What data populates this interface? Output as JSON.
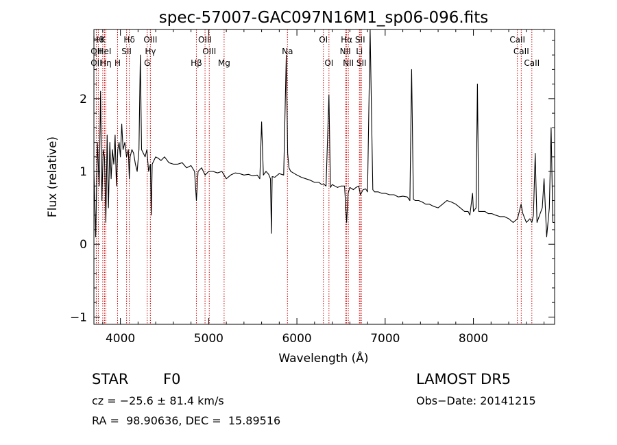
{
  "chart_data": {
    "type": "line",
    "title": "spec-57007-GAC097N16M1_sp06-096.fits",
    "xlabel": "Wavelength (Å)",
    "ylabel": "Flux (relative)",
    "xlim": [
      3700,
      8920
    ],
    "ylim": [
      -1.1,
      2.95
    ],
    "x_ticks": [
      4000,
      5000,
      6000,
      7000,
      8000
    ],
    "y_ticks": [
      -1,
      0,
      1,
      2
    ],
    "grid": false,
    "series": [
      {
        "color": "#000000",
        "x": [
          3700,
          3720,
          3740,
          3760,
          3775,
          3790,
          3805,
          3820,
          3835,
          3850,
          3865,
          3880,
          3895,
          3910,
          3925,
          3940,
          3955,
          3970,
          3985,
          4000,
          4015,
          4030,
          4050,
          4070,
          4090,
          4101,
          4110,
          4130,
          4150,
          4170,
          4190,
          4210,
          4226,
          4240,
          4260,
          4280,
          4300,
          4320,
          4340,
          4350,
          4360,
          4380,
          4400,
          4430,
          4460,
          4500,
          4550,
          4600,
          4650,
          4700,
          4750,
          4800,
          4840,
          4861,
          4880,
          4920,
          4960,
          5000,
          5050,
          5100,
          5150,
          5200,
          5250,
          5300,
          5350,
          5400,
          5450,
          5500,
          5550,
          5580,
          5600,
          5620,
          5650,
          5680,
          5700,
          5711,
          5720,
          5750,
          5800,
          5850,
          5880,
          5895,
          5910,
          5930,
          5960,
          6000,
          6050,
          6100,
          6150,
          6200,
          6250,
          6280,
          6300,
          6330,
          6363,
          6380,
          6400,
          6430,
          6460,
          6500,
          6540,
          6563,
          6580,
          6600,
          6640,
          6670,
          6700,
          6720,
          6750,
          6780,
          6800,
          6830,
          6860,
          6880,
          6920,
          6960,
          7000,
          7050,
          7100,
          7150,
          7200,
          7250,
          7280,
          7300,
          7320,
          7340,
          7380,
          7420,
          7460,
          7500,
          7550,
          7600,
          7650,
          7700,
          7750,
          7800,
          7850,
          7900,
          7940,
          7960,
          7990,
          8000,
          8030,
          8045,
          8060,
          8090,
          8130,
          8170,
          8210,
          8250,
          8300,
          8350,
          8400,
          8450,
          8500,
          8540,
          8560,
          8600,
          8640,
          8662,
          8680,
          8700,
          8720,
          8750,
          8780,
          8800,
          8830,
          8860,
          8880,
          8900,
          8920
        ],
        "y": [
          1.0,
          0.1,
          1.4,
          0.8,
          2.1,
          0.6,
          1.3,
          1.2,
          0.3,
          1.5,
          0.5,
          1.4,
          0.9,
          1.3,
          1.1,
          1.5,
          0.8,
          1.3,
          1.4,
          1.2,
          1.65,
          1.3,
          1.4,
          1.2,
          1.3,
          0.9,
          1.2,
          1.3,
          1.25,
          1.1,
          1.0,
          1.3,
          2.6,
          1.3,
          1.25,
          1.2,
          1.3,
          1.0,
          1.1,
          0.4,
          1.1,
          1.15,
          1.2,
          1.18,
          1.15,
          1.2,
          1.12,
          1.1,
          1.1,
          1.12,
          1.05,
          1.08,
          1.0,
          0.6,
          1.0,
          1.05,
          0.95,
          1.0,
          1.0,
          0.98,
          1.0,
          0.9,
          0.95,
          0.98,
          0.97,
          0.95,
          0.96,
          0.94,
          0.95,
          0.9,
          1.68,
          0.95,
          1.0,
          0.96,
          0.9,
          0.15,
          0.93,
          0.92,
          0.97,
          0.95,
          2.6,
          1.25,
          1.05,
          1.0,
          0.98,
          0.95,
          0.92,
          0.9,
          0.88,
          0.85,
          0.85,
          0.82,
          0.83,
          0.8,
          2.05,
          0.78,
          0.82,
          0.8,
          0.78,
          0.8,
          0.8,
          0.3,
          0.7,
          0.78,
          0.75,
          0.78,
          0.8,
          0.68,
          0.75,
          0.76,
          0.72,
          2.95,
          0.75,
          0.72,
          0.72,
          0.7,
          0.7,
          0.68,
          0.68,
          0.65,
          0.66,
          0.65,
          0.6,
          2.4,
          0.62,
          0.6,
          0.6,
          0.58,
          0.55,
          0.55,
          0.52,
          0.5,
          0.55,
          0.6,
          0.58,
          0.55,
          0.5,
          0.45,
          0.45,
          0.4,
          0.7,
          0.45,
          0.5,
          2.2,
          0.45,
          0.45,
          0.45,
          0.42,
          0.42,
          0.4,
          0.38,
          0.38,
          0.35,
          0.3,
          0.35,
          0.55,
          0.42,
          0.3,
          0.35,
          0.3,
          0.4,
          1.25,
          0.3,
          0.4,
          0.5,
          0.9,
          0.1,
          0.5,
          1.6,
          0.3,
          0.3
        ]
      }
    ],
    "lines": [
      {
        "x": 3750,
        "label": "Hθ",
        "row": 1
      },
      {
        "x": 3727,
        "label": "OII",
        "row": 2
      },
      {
        "x": 3727,
        "label": "OII",
        "row": 3
      },
      {
        "x": 3800,
        "label": "K",
        "row": 1
      },
      {
        "x": 3820,
        "label": "HeI",
        "row": 2
      },
      {
        "x": 3835,
        "label": "Hη",
        "row": 3
      },
      {
        "x": 3968,
        "label": "H",
        "row": 3
      },
      {
        "x": 4101,
        "label": "Hδ",
        "row": 1
      },
      {
        "x": 4070,
        "label": "SII",
        "row": 2
      },
      {
        "x": 4340,
        "label": "OIII",
        "row": 1
      },
      {
        "x": 4340,
        "label": "Hγ",
        "row": 2
      },
      {
        "x": 4304,
        "label": "G",
        "row": 3
      },
      {
        "x": 4861,
        "label": "Hβ",
        "row": 3
      },
      {
        "x": 4959,
        "label": "OIII",
        "row": 1
      },
      {
        "x": 5007,
        "label": "OIII",
        "row": 2
      },
      {
        "x": 5175,
        "label": "Mg",
        "row": 3
      },
      {
        "x": 5893,
        "label": "Na",
        "row": 2
      },
      {
        "x": 6300,
        "label": "OI",
        "row": 1
      },
      {
        "x": 6363,
        "label": "OI",
        "row": 3
      },
      {
        "x": 6563,
        "label": "Hα",
        "row": 1
      },
      {
        "x": 6548,
        "label": "NII",
        "row": 2
      },
      {
        "x": 6583,
        "label": "NII",
        "row": 3
      },
      {
        "x": 6716,
        "label": "SII",
        "row": 1
      },
      {
        "x": 6708,
        "label": "Li",
        "row": 2
      },
      {
        "x": 6731,
        "label": "SII",
        "row": 3
      },
      {
        "x": 8498,
        "label": "CaII",
        "row": 1
      },
      {
        "x": 8542,
        "label": "CaII",
        "row": 2
      },
      {
        "x": 8662,
        "label": "CaII",
        "row": 3
      }
    ]
  },
  "info": {
    "class_label": "STAR",
    "subclass": "F0",
    "survey": "LAMOST DR5",
    "cz": "cz = −25.6 ± 81.4 km/s",
    "obs_date": "Obs−Date: 20141215",
    "radec": "RA =  98.90636, DEC =  15.89516"
  },
  "colors": {
    "spectrum": "#000000",
    "marker_line": "#cc0000",
    "background": "#ffffff"
  }
}
